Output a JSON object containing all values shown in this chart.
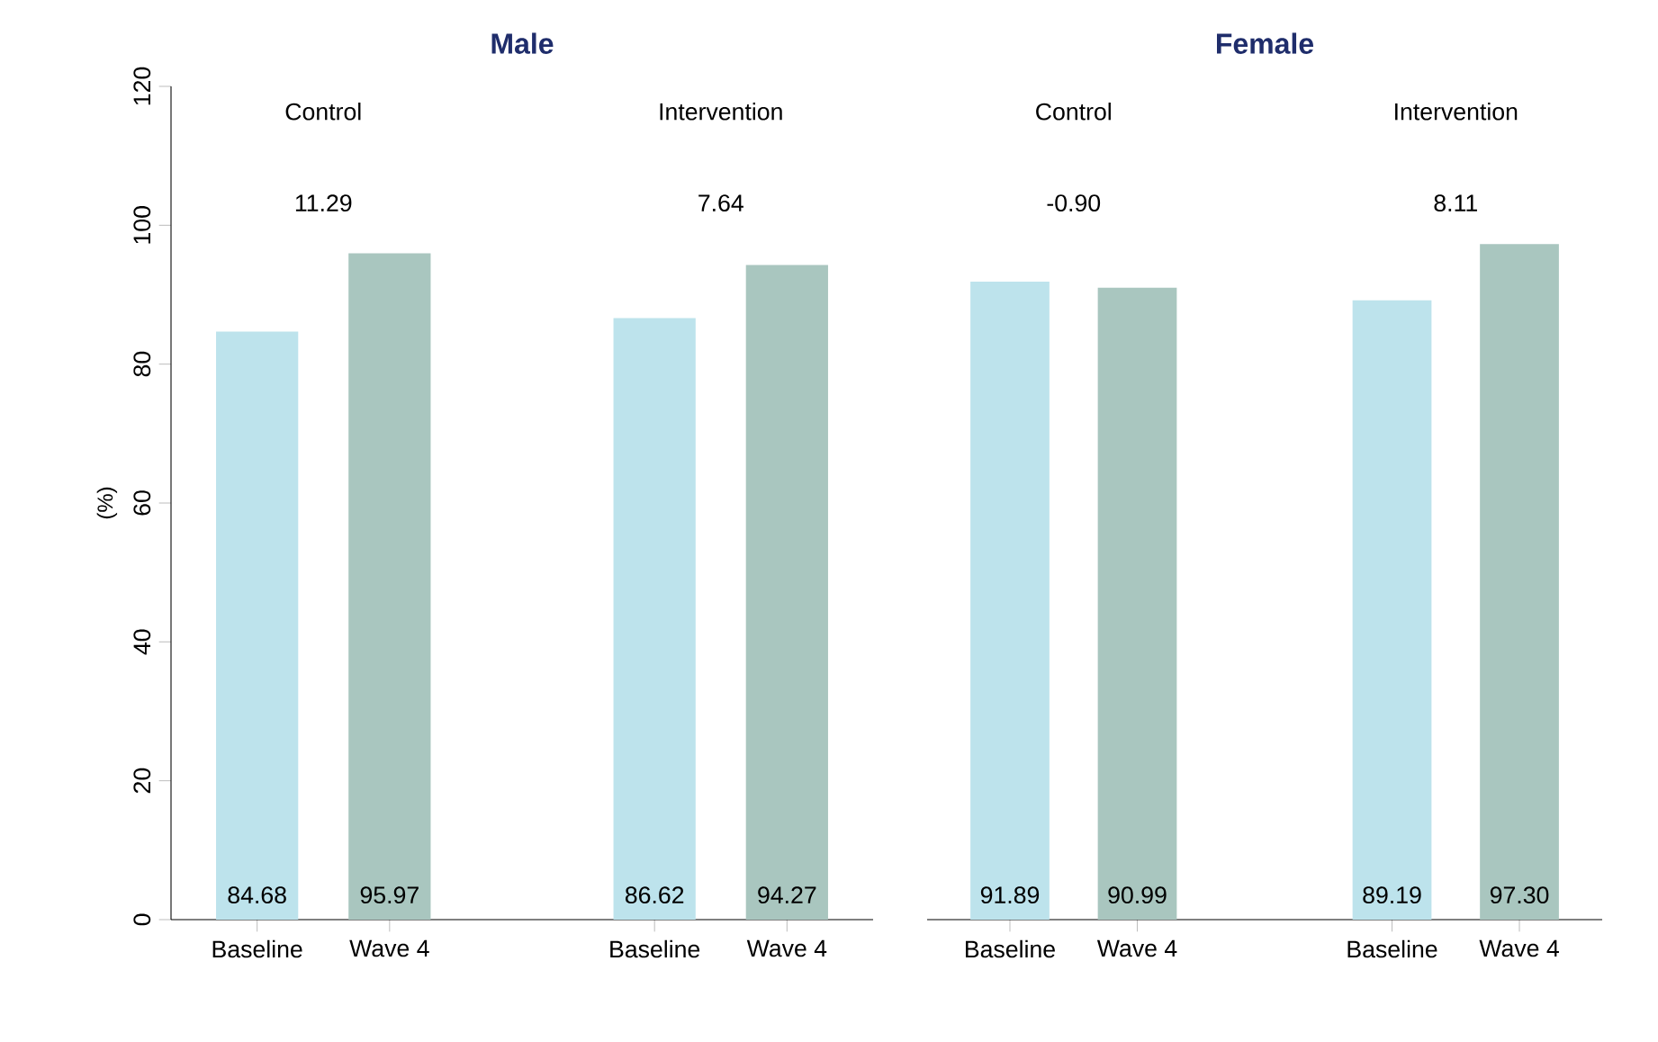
{
  "chart_data": [
    {
      "type": "bar",
      "title": "Male",
      "ylabel": "(%)",
      "categories": [
        "Baseline",
        "Wave 4",
        null,
        "Baseline",
        "Wave 4"
      ],
      "values": [
        84.68,
        95.97,
        null,
        86.62,
        94.27
      ],
      "value_labels": [
        "84.68",
        "95.97",
        null,
        "86.62",
        "94.27"
      ],
      "colors": [
        "#bde3ec",
        "#a9c6bf",
        "#ffffff",
        "#bde3ec",
        "#a9c6bf"
      ],
      "ylim": [
        0,
        120
      ],
      "yticks": [
        0,
        20,
        40,
        60,
        80,
        100,
        120
      ],
      "annotations": [
        "Control",
        "11.29",
        "Intervention",
        "7.64"
      ]
    },
    {
      "type": "bar",
      "title": "Female",
      "categories": [
        "Baseline",
        "Wave 4",
        null,
        "Baseline",
        "Wave 4"
      ],
      "values": [
        91.89,
        90.99,
        null,
        89.19,
        97.3
      ],
      "value_labels": [
        "91.89",
        "90.99",
        null,
        "89.19",
        "97.30"
      ],
      "colors": [
        "#bde3ec",
        "#a9c6bf",
        "#ffffff",
        "#bde3ec",
        "#a9c6bf"
      ],
      "ylim": [
        0,
        120
      ],
      "yticks": [
        0,
        20,
        40,
        60,
        80,
        100,
        120
      ],
      "tick_labels": "x",
      "annotations": [
        "Control",
        "-0.90",
        "Intervention",
        "8.11"
      ]
    }
  ]
}
